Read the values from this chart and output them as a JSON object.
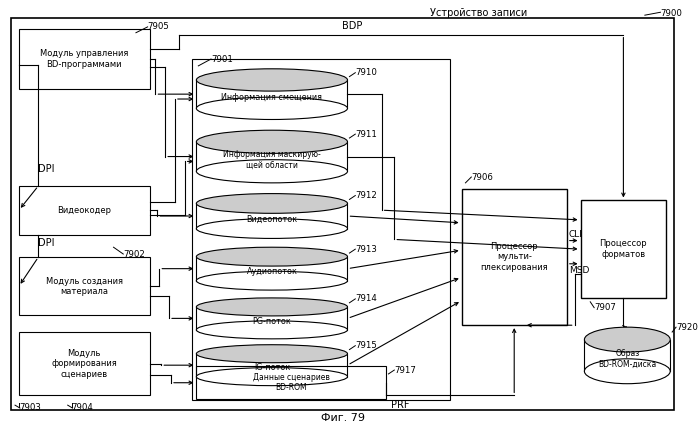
{
  "fig_title": "Фиг. 79",
  "outer_label": "Устройство записи",
  "n7900": "7900",
  "n7901": "7901",
  "n7902": "7902",
  "n7903": "7903",
  "n7904": "7904",
  "n7905": "7905",
  "n7906": "7906",
  "n7907": "7907",
  "n7910": "7910",
  "n7911": "7911",
  "n7912": "7912",
  "n7913": "7913",
  "n7914": "7914",
  "n7915": "7915",
  "n7917": "7917",
  "n7920": "7920",
  "lbl_bdp": "BDP",
  "lbl_prf": "PRF",
  "lbl_cli": "CLI",
  "lbl_msd": "MSD",
  "lbl_dpi": "DPI",
  "lbl_bdmgr": "Модуль управления\nBD-программами",
  "lbl_venc": "Видеокодер",
  "lbl_matcr": "Модуль создания\nматериала",
  "lbl_scen": "Модуль\nформирования\nсценариев",
  "lbl_mux": "Процессор\nмульти-\nплексирования",
  "lbl_fmt": "Процессор\nформатов",
  "lbl_offinfo": "Информация смещения",
  "lbl_maskinfo": "Информация маскирую-\nщей области",
  "lbl_vidstream": "Видеопоток",
  "lbl_audstream": "Аудиопоток",
  "lbl_pg": "PG-поток",
  "lbl_ig": "IG-поток",
  "lbl_bdromdata": "Данные сценариев\nBD-ROM",
  "lbl_bdromimg": "Образ\nBD-ROM-диска"
}
